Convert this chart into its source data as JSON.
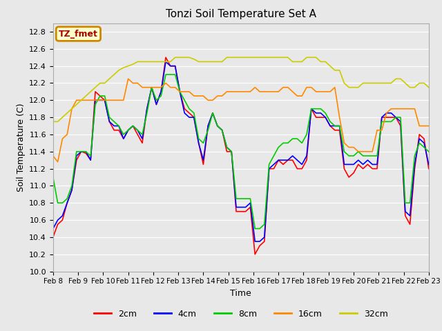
{
  "title": "Tonzi Soil Temperature Set A",
  "xlabel": "Time",
  "ylabel": "Soil Temperature (C)",
  "ylim": [
    10.0,
    12.9
  ],
  "yticks": [
    10.0,
    10.2,
    10.4,
    10.6,
    10.8,
    11.0,
    11.2,
    11.4,
    11.6,
    11.8,
    12.0,
    12.2,
    12.4,
    12.6,
    12.8
  ],
  "xtick_labels": [
    "Feb 8",
    "Feb 9",
    "Feb 10",
    "Feb 11",
    "Feb 12",
    "Feb 13",
    "Feb 14",
    "Feb 15",
    "Feb 16",
    "Feb 17",
    "Feb 18",
    "Feb 19",
    "Feb 20",
    "Feb 21",
    "Feb 22",
    "Feb 23"
  ],
  "colors": {
    "2cm": "#ff0000",
    "4cm": "#0000ff",
    "8cm": "#00cc00",
    "16cm": "#ff8800",
    "32cm": "#cccc00"
  },
  "legend_label": "TZ_fmet",
  "legend_box_facecolor": "#ffffcc",
  "legend_box_edgecolor": "#cc8800",
  "bg_color": "#e8e8e8",
  "plot_bg_color": "#e8e8e8",
  "figwidth": 6.4,
  "figheight": 4.8,
  "dpi": 100,
  "2cm": [
    10.4,
    10.55,
    10.6,
    10.8,
    10.95,
    11.3,
    11.4,
    11.38,
    11.3,
    12.1,
    12.05,
    12.0,
    11.75,
    11.65,
    11.65,
    11.55,
    11.65,
    11.7,
    11.6,
    11.5,
    11.9,
    12.15,
    11.95,
    12.1,
    12.5,
    12.4,
    12.4,
    12.1,
    11.9,
    11.85,
    11.8,
    11.5,
    11.25,
    11.7,
    11.85,
    11.7,
    11.65,
    11.4,
    11.4,
    10.7,
    10.7,
    10.7,
    10.75,
    10.2,
    10.3,
    10.35,
    11.2,
    11.2,
    11.3,
    11.25,
    11.3,
    11.3,
    11.2,
    11.2,
    11.3,
    11.9,
    11.8,
    11.8,
    11.8,
    11.7,
    11.65,
    11.65,
    11.2,
    11.1,
    11.15,
    11.25,
    11.2,
    11.25,
    11.2,
    11.2,
    11.8,
    11.8,
    11.8,
    11.8,
    11.7,
    10.65,
    10.55,
    11.2,
    11.6,
    11.55,
    11.2
  ],
  "4cm": [
    10.5,
    10.6,
    10.65,
    10.8,
    10.95,
    11.35,
    11.4,
    11.4,
    11.3,
    12.0,
    12.0,
    12.0,
    11.75,
    11.7,
    11.7,
    11.55,
    11.65,
    11.7,
    11.65,
    11.55,
    11.9,
    12.15,
    11.95,
    12.1,
    12.45,
    12.4,
    12.4,
    12.1,
    11.85,
    11.8,
    11.8,
    11.5,
    11.3,
    11.7,
    11.85,
    11.7,
    11.65,
    11.45,
    11.4,
    10.75,
    10.75,
    10.75,
    10.8,
    10.35,
    10.35,
    10.4,
    11.2,
    11.25,
    11.3,
    11.3,
    11.3,
    11.35,
    11.3,
    11.25,
    11.35,
    11.9,
    11.85,
    11.85,
    11.8,
    11.7,
    11.7,
    11.7,
    11.25,
    11.25,
    11.25,
    11.3,
    11.25,
    11.3,
    11.25,
    11.25,
    11.8,
    11.85,
    11.85,
    11.8,
    11.75,
    10.7,
    10.65,
    11.25,
    11.55,
    11.5,
    11.25
  ],
  "8cm": [
    11.1,
    10.8,
    10.8,
    10.85,
    11.0,
    11.4,
    11.4,
    11.4,
    11.35,
    11.95,
    12.05,
    12.05,
    11.8,
    11.75,
    11.7,
    11.6,
    11.65,
    11.7,
    11.65,
    11.6,
    11.85,
    12.15,
    12.0,
    12.05,
    12.3,
    12.3,
    12.3,
    12.1,
    12.0,
    11.9,
    11.85,
    11.55,
    11.5,
    11.65,
    11.85,
    11.7,
    11.65,
    11.45,
    11.4,
    10.85,
    10.85,
    10.85,
    10.85,
    10.5,
    10.5,
    10.55,
    11.25,
    11.35,
    11.45,
    11.5,
    11.5,
    11.55,
    11.55,
    11.5,
    11.6,
    11.9,
    11.9,
    11.9,
    11.85,
    11.75,
    11.7,
    11.7,
    11.4,
    11.35,
    11.35,
    11.4,
    11.35,
    11.35,
    11.35,
    11.35,
    11.75,
    11.75,
    11.75,
    11.8,
    11.8,
    10.8,
    10.8,
    11.35,
    11.5,
    11.45,
    11.4
  ],
  "16cm": [
    11.35,
    11.28,
    11.55,
    11.6,
    11.9,
    12.0,
    12.0,
    12.0,
    12.0,
    12.0,
    12.0,
    12.0,
    12.0,
    12.0,
    12.0,
    12.0,
    12.25,
    12.2,
    12.2,
    12.15,
    12.15,
    12.15,
    12.15,
    12.15,
    12.2,
    12.15,
    12.15,
    12.1,
    12.1,
    12.1,
    12.05,
    12.05,
    12.05,
    12.0,
    12.0,
    12.05,
    12.05,
    12.1,
    12.1,
    12.1,
    12.1,
    12.1,
    12.1,
    12.15,
    12.1,
    12.1,
    12.1,
    12.1,
    12.1,
    12.15,
    12.15,
    12.1,
    12.05,
    12.05,
    12.15,
    12.15,
    12.1,
    12.1,
    12.1,
    12.1,
    12.15,
    11.8,
    11.5,
    11.45,
    11.45,
    11.4,
    11.4,
    11.4,
    11.4,
    11.65,
    11.65,
    11.85,
    11.9,
    11.9,
    11.9,
    11.9,
    11.9,
    11.9,
    11.7,
    11.7,
    11.7
  ],
  "32cm": [
    11.75,
    11.75,
    11.8,
    11.85,
    11.9,
    11.95,
    12.0,
    12.05,
    12.1,
    12.15,
    12.2,
    12.2,
    12.25,
    12.3,
    12.35,
    12.38,
    12.4,
    12.42,
    12.45,
    12.45,
    12.45,
    12.45,
    12.45,
    12.45,
    12.45,
    12.45,
    12.5,
    12.5,
    12.5,
    12.5,
    12.48,
    12.45,
    12.45,
    12.45,
    12.45,
    12.45,
    12.45,
    12.5,
    12.5,
    12.5,
    12.5,
    12.5,
    12.5,
    12.5,
    12.5,
    12.5,
    12.5,
    12.5,
    12.5,
    12.5,
    12.5,
    12.45,
    12.45,
    12.45,
    12.5,
    12.5,
    12.5,
    12.45,
    12.45,
    12.4,
    12.35,
    12.35,
    12.2,
    12.15,
    12.15,
    12.15,
    12.2,
    12.2,
    12.2,
    12.2,
    12.2,
    12.2,
    12.2,
    12.25,
    12.25,
    12.2,
    12.15,
    12.15,
    12.2,
    12.2,
    12.15
  ]
}
